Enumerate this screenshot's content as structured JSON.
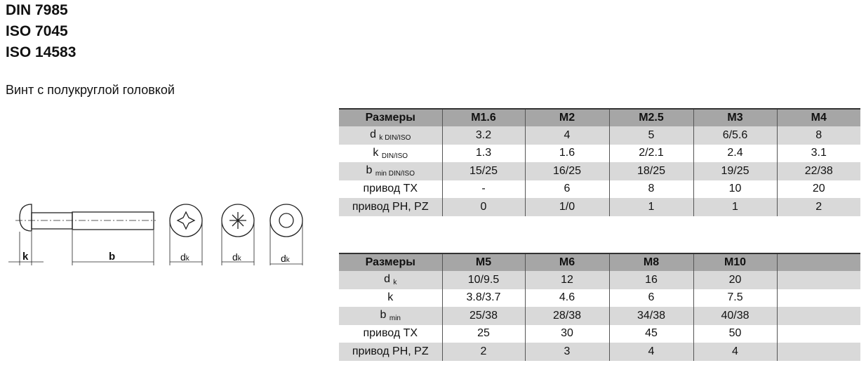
{
  "standards": [
    "DIN 7985",
    "ISO 7045",
    "ISO 14583"
  ],
  "subtitle": "Винт с полукруглой головкой",
  "drawing": {
    "labels": {
      "k": "k",
      "b": "b",
      "dk": "d",
      "dk_sub": "k"
    }
  },
  "table1": {
    "header": [
      "Размеры",
      "M1.6",
      "M2",
      "M2.5",
      "M3",
      "M4"
    ],
    "rows": [
      {
        "label": "d",
        "sub": "k DIN/ISO",
        "values": [
          "3.2",
          "4",
          "5",
          "6/5.6",
          "8"
        ]
      },
      {
        "label": "k",
        "sub": "DIN/ISO",
        "values": [
          "1.3",
          "1.6",
          "2/2.1",
          "2.4",
          "3.1"
        ]
      },
      {
        "label": "b",
        "sub": "min DIN/ISO",
        "values": [
          "15/25",
          "16/25",
          "18/25",
          "19/25",
          "22/38"
        ]
      },
      {
        "label": "привод TX",
        "sub": "",
        "values": [
          "-",
          "6",
          "8",
          "10",
          "20"
        ]
      },
      {
        "label": "привод PH, PZ",
        "sub": "",
        "values": [
          "0",
          "1/0",
          "1",
          "1",
          "2"
        ]
      }
    ]
  },
  "table2": {
    "header": [
      "Размеры",
      "M5",
      "M6",
      "M8",
      "M10",
      ""
    ],
    "rows": [
      {
        "label": "d",
        "sub": "k",
        "values": [
          "10/9.5",
          "12",
          "16",
          "20",
          ""
        ]
      },
      {
        "label": "k",
        "sub": "",
        "values": [
          "3.8/3.7",
          "4.6",
          "6",
          "7.5",
          ""
        ]
      },
      {
        "label": "b",
        "sub": "min",
        "values": [
          "25/38",
          "28/38",
          "34/38",
          "40/38",
          ""
        ]
      },
      {
        "label": "привод TX",
        "sub": "",
        "values": [
          "25",
          "30",
          "45",
          "50",
          ""
        ]
      },
      {
        "label": "привод PH, PZ",
        "sub": "",
        "values": [
          "2",
          "3",
          "4",
          "4",
          ""
        ]
      }
    ]
  }
}
